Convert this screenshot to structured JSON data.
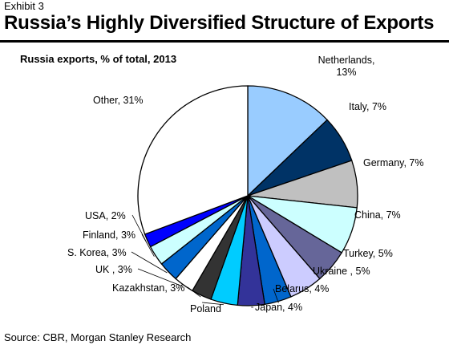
{
  "header": {
    "exhibit": "Exhibit 3",
    "title": "Russia’s Highly Diversified Structure of Exports"
  },
  "chart_data": {
    "type": "pie",
    "title": "Russia exports, % of total, 2013",
    "slices": [
      {
        "label_lines": [
          "Netherlands,",
          "13%"
        ],
        "value": 13,
        "color": "#99ccff"
      },
      {
        "label_lines": [
          "Italy, 7%"
        ],
        "value": 7,
        "color": "#003366"
      },
      {
        "label_lines": [
          "Germany, 7%"
        ],
        "value": 7,
        "color": "#c0c0c0"
      },
      {
        "label_lines": [
          "China, 7%"
        ],
        "value": 7,
        "color": "#ccffff"
      },
      {
        "label_lines": [
          "Turkey, 5%"
        ],
        "value": 5,
        "color": "#666699"
      },
      {
        "label_lines": [
          "Ukraine , 5%"
        ],
        "value": 5,
        "color": "#ccccff"
      },
      {
        "label_lines": [
          "Belarus, 4%"
        ],
        "value": 4,
        "color": "#0066cc"
      },
      {
        "label_lines": [
          "Japan, 4%"
        ],
        "value": 4,
        "color": "#333399"
      },
      {
        "label_lines": [
          "Poland"
        ],
        "value": 4,
        "color": "#00ccff"
      },
      {
        "label_lines": [
          "Kazakhstan, 3%"
        ],
        "value": 3,
        "color": "#333333"
      },
      {
        "label_lines": [
          "UK , 3%"
        ],
        "value": 3,
        "color": "#ffffff"
      },
      {
        "label_lines": [
          "S. Korea, 3%"
        ],
        "value": 3,
        "color": "#0066cc"
      },
      {
        "label_lines": [
          "Finland, 3%"
        ],
        "value": 3,
        "color": "#ccffff"
      },
      {
        "label_lines": [
          "USA, 2%"
        ],
        "value": 2,
        "color": "#0000ff"
      },
      {
        "label_lines": [
          "Other, 31%"
        ],
        "value": 31,
        "color": "#ffffff"
      }
    ]
  },
  "footer": {
    "source": "Source: CBR, Morgan Stanley Research"
  }
}
